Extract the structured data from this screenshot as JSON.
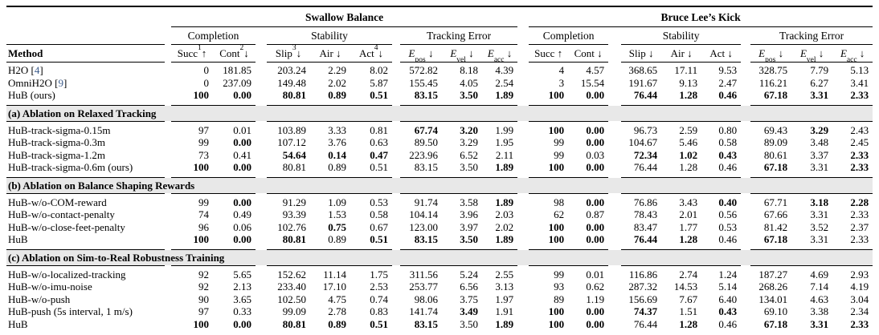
{
  "colors": {
    "citation_blue": "#3b5b8b",
    "section_band_bg": "#e8e8e8",
    "rule_black": "#000000"
  },
  "table": {
    "tasks": [
      {
        "name": "Swallow Balance"
      },
      {
        "name": "Bruce Lee’s Kick"
      }
    ],
    "groups": [
      "Completion",
      "Stability",
      "Tracking Error"
    ],
    "columns": {
      "method_label": "Method",
      "task1": [
        {
          "key": "succ",
          "base": "Succ",
          "sup": "1",
          "sub": "",
          "arrow": "↑",
          "italic": false
        },
        {
          "key": "cont",
          "base": "Cont",
          "sup": "2",
          "sub": "",
          "arrow": "↓",
          "italic": false
        },
        {
          "key": "slip",
          "base": "Slip",
          "sup": "3",
          "sub": "",
          "arrow": "↓",
          "italic": false
        },
        {
          "key": "air",
          "base": "Air",
          "sup": "",
          "sub": "",
          "arrow": "↓",
          "italic": false
        },
        {
          "key": "act",
          "base": "Act",
          "sup": "4",
          "sub": "",
          "arrow": "↓",
          "italic": false
        },
        {
          "key": "e-pos",
          "base": "E",
          "sup": "",
          "sub": "pos",
          "arrow": "↓",
          "italic": true
        },
        {
          "key": "e-vel",
          "base": "E",
          "sup": "",
          "sub": "vel",
          "arrow": "↓",
          "italic": true
        },
        {
          "key": "e-acc",
          "base": "E",
          "sup": "",
          "sub": "acc",
          "arrow": "↓",
          "italic": true
        }
      ],
      "task2": [
        {
          "key": "succ",
          "base": "Succ",
          "sup": "",
          "sub": "",
          "arrow": "↑",
          "italic": false
        },
        {
          "key": "cont",
          "base": "Cont",
          "sup": "",
          "sub": "",
          "arrow": "↓",
          "italic": false
        },
        {
          "key": "slip",
          "base": "Slip",
          "sup": "",
          "sub": "",
          "arrow": "↓",
          "italic": false
        },
        {
          "key": "air",
          "base": "Air",
          "sup": "",
          "sub": "",
          "arrow": "↓",
          "italic": false
        },
        {
          "key": "act",
          "base": "Act",
          "sup": "",
          "sub": "",
          "arrow": "↓",
          "italic": false
        },
        {
          "key": "e-pos",
          "base": "E",
          "sup": "",
          "sub": "pos",
          "arrow": "↓",
          "italic": true
        },
        {
          "key": "e-vel",
          "base": "E",
          "sup": "",
          "sub": "vel",
          "arrow": "↓",
          "italic": true
        },
        {
          "key": "e-acc",
          "base": "E",
          "sup": "",
          "sub": "acc",
          "arrow": "↓",
          "italic": true
        }
      ]
    },
    "sections": [
      {
        "title": null,
        "rows": [
          {
            "method": "H2O",
            "cite": "4",
            "values": [
              "0",
              "181.85",
              "203.24",
              "2.29",
              "8.02",
              "572.82",
              "8.18",
              "4.39",
              "4",
              "4.57",
              "368.65",
              "17.11",
              "9.53",
              "328.75",
              "7.79",
              "5.13"
            ],
            "bold": [
              0,
              0,
              0,
              0,
              0,
              0,
              0,
              0,
              0,
              0,
              0,
              0,
              0,
              0,
              0,
              0
            ]
          },
          {
            "method": "OmniH2O",
            "cite": "9",
            "values": [
              "0",
              "237.09",
              "149.48",
              "2.02",
              "5.87",
              "155.45",
              "4.05",
              "2.54",
              "3",
              "15.54",
              "191.67",
              "9.13",
              "2.47",
              "116.21",
              "6.27",
              "3.41"
            ],
            "bold": [
              0,
              0,
              0,
              0,
              0,
              0,
              0,
              0,
              0,
              0,
              0,
              0,
              0,
              0,
              0,
              0
            ]
          },
          {
            "method": "HuB (ours)",
            "cite": null,
            "values": [
              "100",
              "0.00",
              "80.81",
              "0.89",
              "0.51",
              "83.15",
              "3.50",
              "1.89",
              "100",
              "0.00",
              "76.44",
              "1.28",
              "0.46",
              "67.18",
              "3.31",
              "2.33"
            ],
            "bold": [
              1,
              1,
              1,
              1,
              1,
              1,
              1,
              1,
              1,
              1,
              1,
              1,
              1,
              1,
              1,
              1
            ]
          }
        ]
      },
      {
        "title": "(a) Ablation on Relaxed Tracking",
        "rows": [
          {
            "method": "HuB-track-sigma-0.15m",
            "cite": null,
            "values": [
              "97",
              "0.01",
              "103.89",
              "3.33",
              "0.81",
              "67.74",
              "3.20",
              "1.99",
              "100",
              "0.00",
              "96.73",
              "2.59",
              "0.80",
              "69.43",
              "3.29",
              "2.43"
            ],
            "bold": [
              0,
              0,
              0,
              0,
              0,
              1,
              1,
              0,
              1,
              1,
              0,
              0,
              0,
              0,
              1,
              0
            ]
          },
          {
            "method": "HuB-track-sigma-0.3m",
            "cite": null,
            "values": [
              "99",
              "0.00",
              "107.12",
              "3.76",
              "0.63",
              "89.50",
              "3.29",
              "1.95",
              "99",
              "0.00",
              "104.67",
              "5.46",
              "0.58",
              "89.09",
              "3.48",
              "2.45"
            ],
            "bold": [
              0,
              1,
              0,
              0,
              0,
              0,
              0,
              0,
              0,
              1,
              0,
              0,
              0,
              0,
              0,
              0
            ]
          },
          {
            "method": "HuB-track-sigma-1.2m",
            "cite": null,
            "values": [
              "73",
              "0.41",
              "54.64",
              "0.14",
              "0.47",
              "223.96",
              "6.52",
              "2.11",
              "99",
              "0.03",
              "72.34",
              "1.02",
              "0.43",
              "80.61",
              "3.37",
              "2.33"
            ],
            "bold": [
              0,
              0,
              1,
              1,
              1,
              0,
              0,
              0,
              0,
              0,
              1,
              1,
              1,
              0,
              0,
              1
            ]
          },
          {
            "method": "HuB-track-sigma-0.6m (ours)",
            "cite": null,
            "values": [
              "100",
              "0.00",
              "80.81",
              "0.89",
              "0.51",
              "83.15",
              "3.50",
              "1.89",
              "100",
              "0.00",
              "76.44",
              "1.28",
              "0.46",
              "67.18",
              "3.31",
              "2.33"
            ],
            "bold": [
              1,
              1,
              0,
              0,
              0,
              0,
              0,
              1,
              1,
              1,
              0,
              0,
              0,
              1,
              0,
              1
            ]
          }
        ]
      },
      {
        "title": "(b) Ablation on Balance Shaping Rewards",
        "rows": [
          {
            "method": "HuB-w/o-COM-reward",
            "cite": null,
            "values": [
              "99",
              "0.00",
              "91.29",
              "1.09",
              "0.53",
              "91.74",
              "3.58",
              "1.89",
              "98",
              "0.00",
              "76.86",
              "3.43",
              "0.40",
              "67.71",
              "3.18",
              "2.28"
            ],
            "bold": [
              0,
              1,
              0,
              0,
              0,
              0,
              0,
              1,
              0,
              1,
              0,
              0,
              1,
              0,
              1,
              1
            ]
          },
          {
            "method": "HuB-w/o-contact-penalty",
            "cite": null,
            "values": [
              "74",
              "0.49",
              "93.39",
              "1.53",
              "0.58",
              "104.14",
              "3.96",
              "2.03",
              "62",
              "0.87",
              "78.43",
              "2.01",
              "0.56",
              "67.66",
              "3.31",
              "2.33"
            ],
            "bold": [
              0,
              0,
              0,
              0,
              0,
              0,
              0,
              0,
              0,
              0,
              0,
              0,
              0,
              0,
              0,
              0
            ]
          },
          {
            "method": "HuB-w/o-close-feet-penalty",
            "cite": null,
            "values": [
              "96",
              "0.06",
              "102.76",
              "0.75",
              "0.67",
              "123.00",
              "3.97",
              "2.02",
              "100",
              "0.00",
              "83.47",
              "1.77",
              "0.53",
              "81.42",
              "3.52",
              "2.37"
            ],
            "bold": [
              0,
              0,
              0,
              1,
              0,
              0,
              0,
              0,
              1,
              1,
              0,
              0,
              0,
              0,
              0,
              0
            ]
          },
          {
            "method": "HuB",
            "cite": null,
            "values": [
              "100",
              "0.00",
              "80.81",
              "0.89",
              "0.51",
              "83.15",
              "3.50",
              "1.89",
              "100",
              "0.00",
              "76.44",
              "1.28",
              "0.46",
              "67.18",
              "3.31",
              "2.33"
            ],
            "bold": [
              1,
              1,
              1,
              0,
              1,
              1,
              1,
              1,
              1,
              1,
              1,
              1,
              0,
              1,
              0,
              0
            ]
          }
        ]
      },
      {
        "title": "(c) Ablation on Sim-to-Real Robustness Training",
        "rows": [
          {
            "method": "HuB-w/o-localized-tracking",
            "cite": null,
            "values": [
              "92",
              "5.65",
              "152.62",
              "11.14",
              "1.75",
              "311.56",
              "5.24",
              "2.55",
              "99",
              "0.01",
              "116.86",
              "2.74",
              "1.24",
              "187.27",
              "4.69",
              "2.93"
            ],
            "bold": [
              0,
              0,
              0,
              0,
              0,
              0,
              0,
              0,
              0,
              0,
              0,
              0,
              0,
              0,
              0,
              0
            ]
          },
          {
            "method": "HuB-w/o-imu-noise",
            "cite": null,
            "values": [
              "92",
              "2.13",
              "233.40",
              "17.10",
              "2.53",
              "253.77",
              "6.56",
              "3.13",
              "93",
              "0.62",
              "287.32",
              "14.53",
              "5.14",
              "268.26",
              "7.14",
              "4.19"
            ],
            "bold": [
              0,
              0,
              0,
              0,
              0,
              0,
              0,
              0,
              0,
              0,
              0,
              0,
              0,
              0,
              0,
              0
            ]
          },
          {
            "method": "HuB-w/o-push",
            "cite": null,
            "values": [
              "90",
              "3.65",
              "102.50",
              "4.75",
              "0.74",
              "98.06",
              "3.75",
              "1.97",
              "89",
              "1.19",
              "156.69",
              "7.67",
              "6.40",
              "134.01",
              "4.63",
              "3.04"
            ],
            "bold": [
              0,
              0,
              0,
              0,
              0,
              0,
              0,
              0,
              0,
              0,
              0,
              0,
              0,
              0,
              0,
              0
            ]
          },
          {
            "method": "HuB-push (5s interval, 1 m/s)",
            "cite": null,
            "values": [
              "97",
              "0.33",
              "99.09",
              "2.78",
              "0.83",
              "141.74",
              "3.49",
              "1.91",
              "100",
              "0.00",
              "74.37",
              "1.51",
              "0.43",
              "69.10",
              "3.38",
              "2.34"
            ],
            "bold": [
              0,
              0,
              0,
              0,
              0,
              0,
              1,
              0,
              1,
              1,
              1,
              0,
              1,
              0,
              0,
              0
            ]
          },
          {
            "method": "HuB",
            "cite": null,
            "values": [
              "100",
              "0.00",
              "80.81",
              "0.89",
              "0.51",
              "83.15",
              "3.50",
              "1.89",
              "100",
              "0.00",
              "76.44",
              "1.28",
              "0.46",
              "67.18",
              "3.31",
              "2.33"
            ],
            "bold": [
              1,
              1,
              1,
              1,
              1,
              1,
              0,
              1,
              1,
              1,
              0,
              1,
              0,
              1,
              1,
              1
            ]
          }
        ]
      }
    ]
  }
}
